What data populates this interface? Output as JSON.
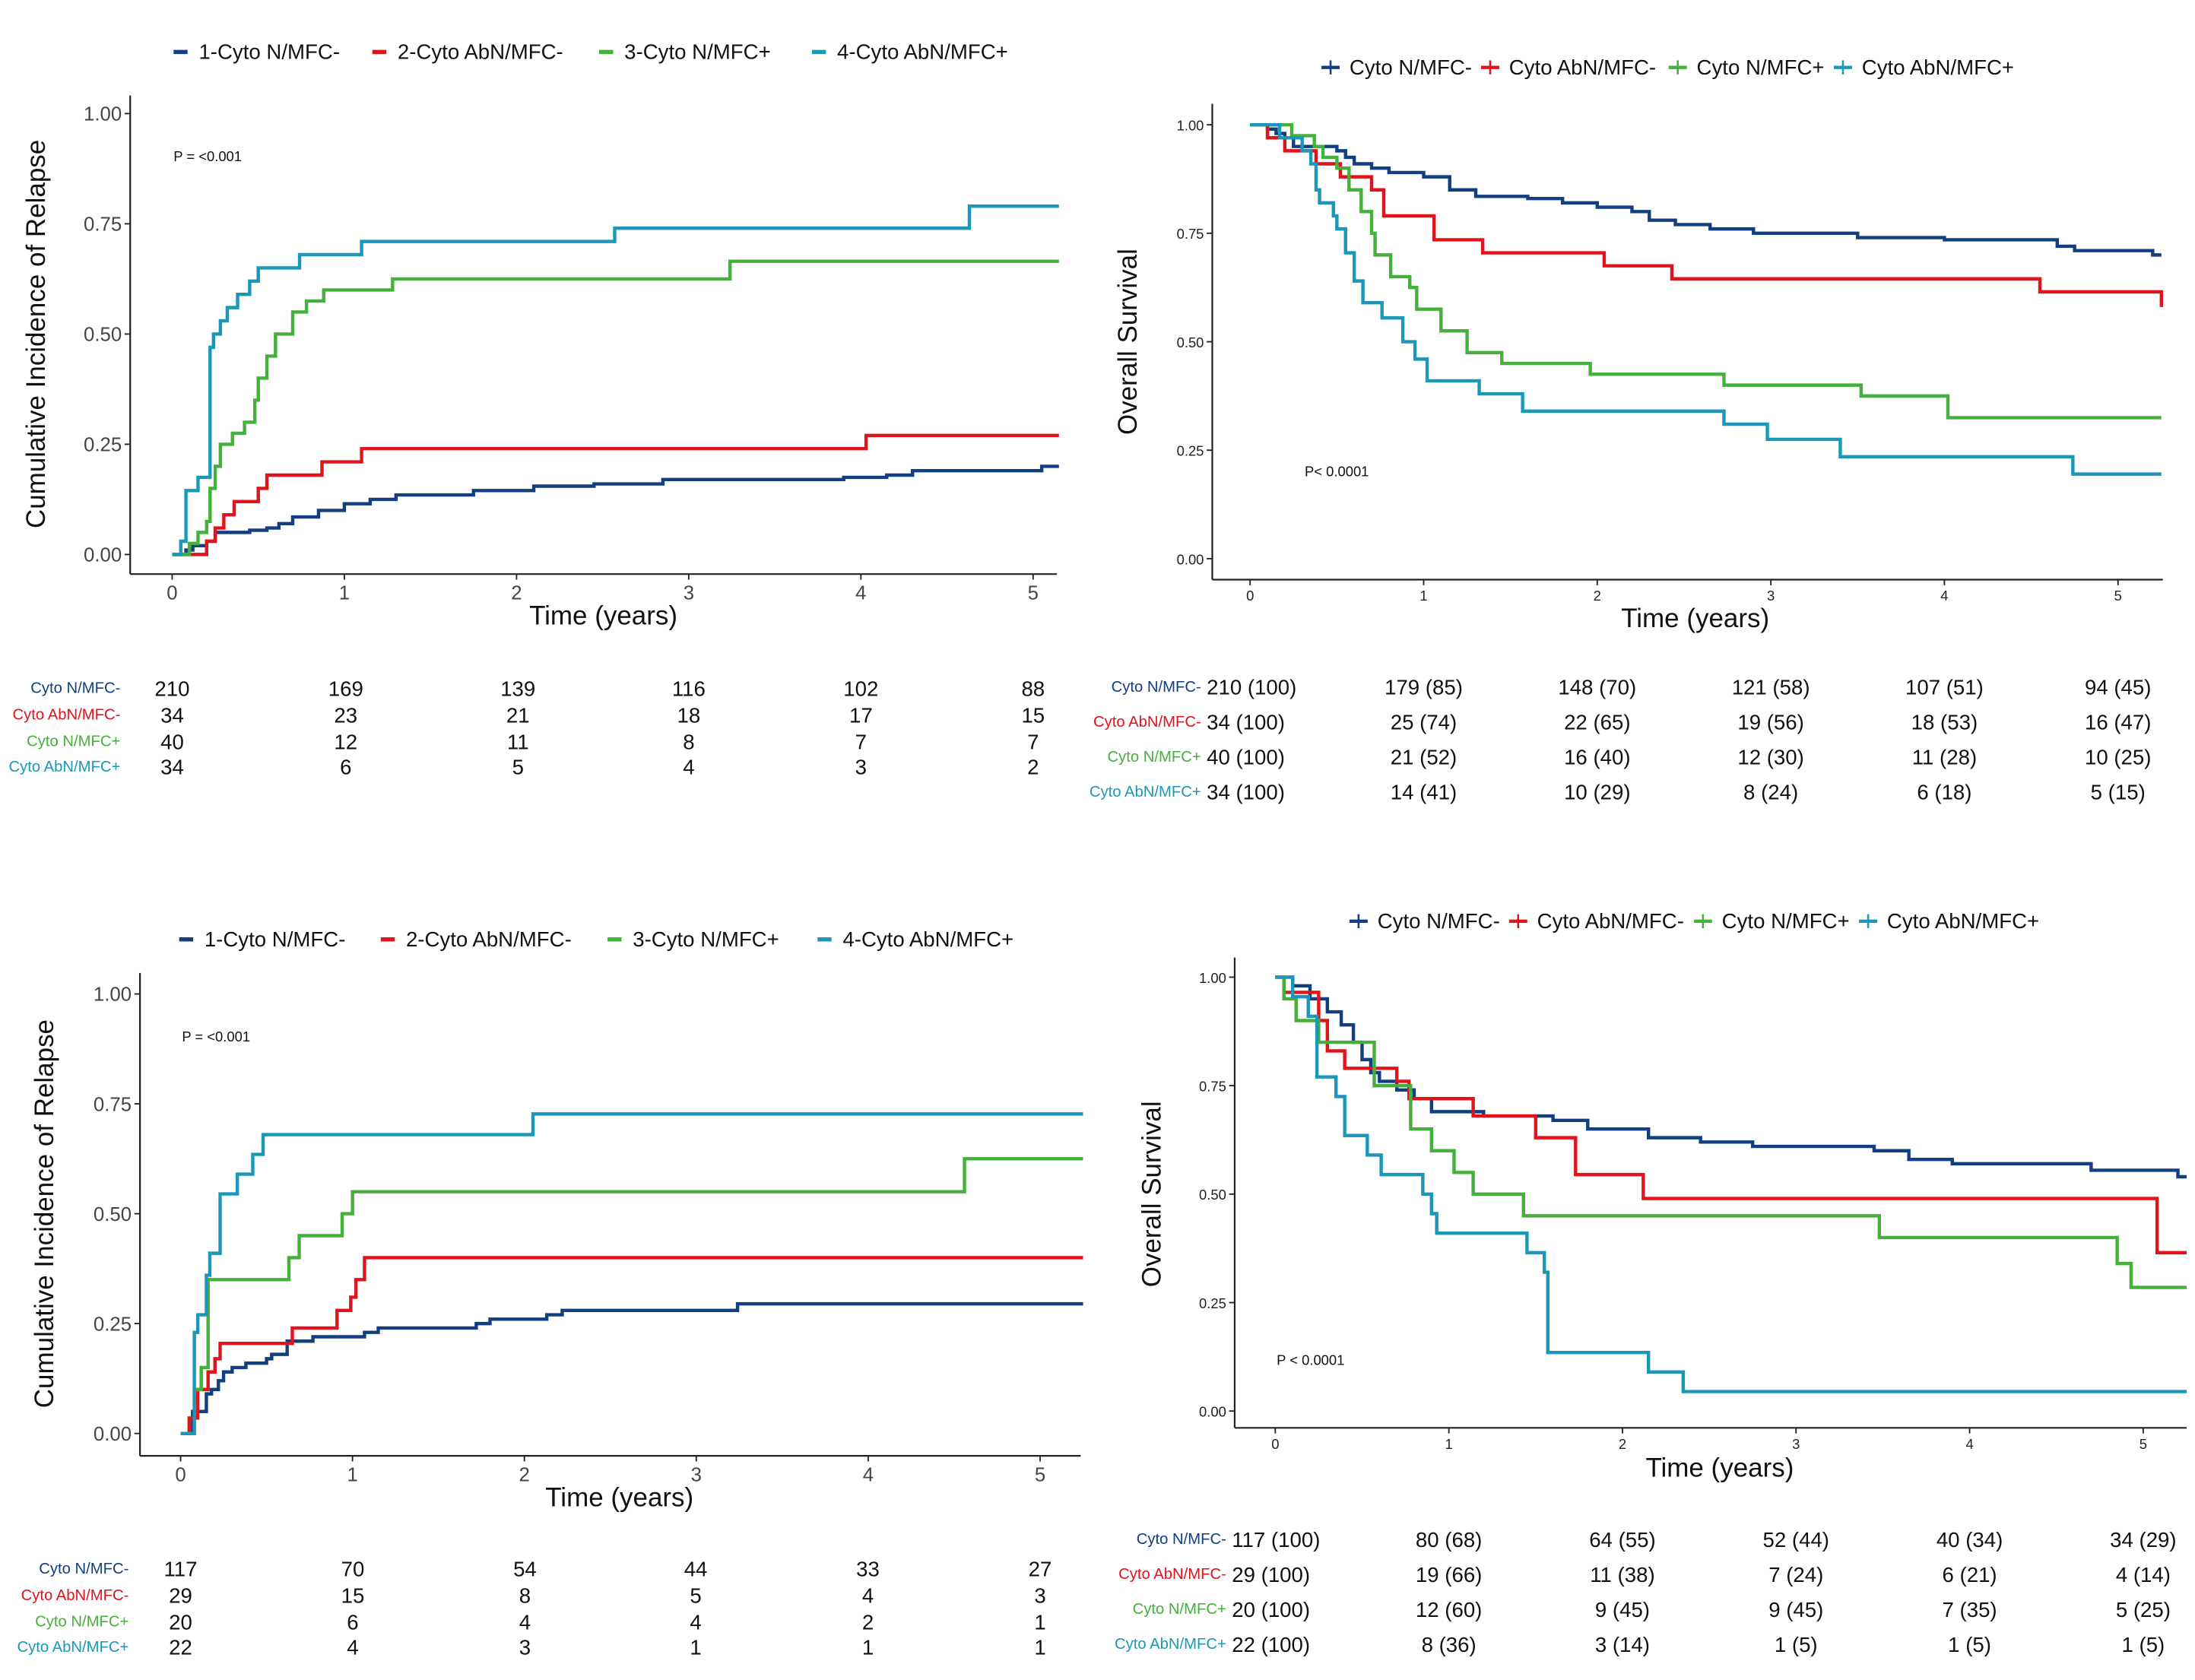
{
  "colors": {
    "g1": "#123f80",
    "g2": "#e0141c",
    "g3": "#46b03c",
    "g4": "#1b98b8"
  },
  "chart_data": [
    {
      "id": "top-left",
      "type": "line",
      "step": true,
      "title": "",
      "xlabel": "Time (years)",
      "ylabel": "Cumulative Incidence of Relapse",
      "xlim": [
        0,
        5.25
      ],
      "ylim": [
        0,
        1
      ],
      "xticks": [
        "0",
        "1",
        "2",
        "3",
        "4",
        "5"
      ],
      "yticks": [
        "0.00",
        "0.25",
        "0.50",
        "0.75",
        "1.00"
      ],
      "grid": false,
      "legend_position": "top",
      "annotation": "P = <0.001",
      "series": [
        {
          "name": "1-Cyto N/MFC-",
          "color_key": "g1",
          "x": [
            0,
            0.08,
            0.12,
            0.2,
            0.25,
            0.45,
            0.55,
            0.62,
            0.7,
            0.85,
            1.0,
            1.15,
            1.3,
            1.75,
            2.1,
            2.45,
            2.85,
            3.9,
            4.15,
            4.3,
            5.05,
            5.15
          ],
          "y": [
            0,
            0.01,
            0.02,
            0.03,
            0.05,
            0.055,
            0.06,
            0.07,
            0.085,
            0.1,
            0.115,
            0.125,
            0.135,
            0.145,
            0.155,
            0.16,
            0.17,
            0.175,
            0.18,
            0.19,
            0.2,
            0.2
          ]
        },
        {
          "name": "2-Cyto AbN/MFC-",
          "color_key": "g2",
          "x": [
            0,
            0.2,
            0.25,
            0.3,
            0.36,
            0.5,
            0.55,
            0.87,
            1.1,
            4.03,
            5.15
          ],
          "y": [
            0,
            0.03,
            0.06,
            0.09,
            0.12,
            0.15,
            0.18,
            0.21,
            0.24,
            0.27,
            0.27
          ]
        },
        {
          "name": "3-Cyto N/MFC+",
          "color_key": "g3",
          "x": [
            0,
            0.1,
            0.15,
            0.2,
            0.22,
            0.25,
            0.28,
            0.35,
            0.42,
            0.48,
            0.5,
            0.55,
            0.6,
            0.7,
            0.78,
            0.88,
            1.28,
            3.24,
            5.15
          ],
          "y": [
            0,
            0.025,
            0.05,
            0.075,
            0.15,
            0.2,
            0.25,
            0.275,
            0.3,
            0.35,
            0.4,
            0.45,
            0.5,
            0.55,
            0.575,
            0.6,
            0.625,
            0.665,
            0.665
          ]
        },
        {
          "name": "4-Cyto AbN/MFC+",
          "color_key": "g4",
          "x": [
            0,
            0.05,
            0.08,
            0.15,
            0.22,
            0.24,
            0.28,
            0.32,
            0.38,
            0.45,
            0.5,
            0.74,
            1.1,
            2.57,
            4.63,
            5.15
          ],
          "y": [
            0,
            0.03,
            0.145,
            0.175,
            0.47,
            0.5,
            0.53,
            0.56,
            0.59,
            0.62,
            0.65,
            0.68,
            0.71,
            0.74,
            0.79,
            0.79
          ]
        }
      ],
      "risk_table": {
        "time_points": [
          0,
          1,
          2,
          3,
          4,
          5
        ],
        "rows": [
          {
            "label": "Cyto N/MFC-",
            "color_key": "g1",
            "values": [
              "210",
              "169",
              "139",
              "116",
              "102",
              "88"
            ]
          },
          {
            "label": "Cyto AbN/MFC-",
            "color_key": "g2",
            "values": [
              "34",
              "23",
              "21",
              "18",
              "17",
              "15"
            ]
          },
          {
            "label": "Cyto N/MFC+",
            "color_key": "g3",
            "values": [
              "40",
              "12",
              "11",
              "8",
              "7",
              "7"
            ]
          },
          {
            "label": "Cyto AbN/MFC+",
            "color_key": "g4",
            "values": [
              "34",
              "6",
              "5",
              "4",
              "3",
              "2"
            ]
          }
        ]
      }
    },
    {
      "id": "top-right",
      "type": "line",
      "step": true,
      "title": "",
      "xlabel": "Time (years)",
      "ylabel": "Overall Survival",
      "xlim": [
        0,
        5.25
      ],
      "ylim": [
        0,
        1
      ],
      "xticks": [
        "0",
        "1",
        "2",
        "3",
        "4",
        "5"
      ],
      "yticks": [
        "0.00",
        "0.25",
        "0.50",
        "0.75",
        "1.00"
      ],
      "grid": false,
      "legend_position": "top",
      "annotation": "P< 0.0001",
      "series": [
        {
          "name": "Cyto N/MFC-",
          "color_key": "g1",
          "x": [
            0,
            0.1,
            0.15,
            0.2,
            0.25,
            0.5,
            0.55,
            0.6,
            0.7,
            0.8,
            1.0,
            1.15,
            1.3,
            1.6,
            1.8,
            2.0,
            2.2,
            2.3,
            2.45,
            2.65,
            2.9,
            3.5,
            3.9,
            4.0,
            4.65,
            4.75,
            5.2,
            5.25
          ],
          "y": [
            1,
            0.99,
            0.98,
            0.97,
            0.95,
            0.94,
            0.925,
            0.91,
            0.9,
            0.89,
            0.88,
            0.85,
            0.835,
            0.83,
            0.82,
            0.81,
            0.8,
            0.78,
            0.77,
            0.76,
            0.75,
            0.74,
            0.74,
            0.735,
            0.72,
            0.71,
            0.7,
            0.7
          ]
        },
        {
          "name": "Cyto AbN/MFC-",
          "color_key": "g2",
          "x": [
            0,
            0.1,
            0.2,
            0.38,
            0.52,
            0.7,
            0.77,
            1.06,
            1.34,
            2.04,
            2.43,
            4.55,
            5.25
          ],
          "y": [
            1,
            0.97,
            0.94,
            0.91,
            0.88,
            0.85,
            0.79,
            0.735,
            0.705,
            0.675,
            0.645,
            0.615,
            0.58
          ]
        },
        {
          "name": "Cyto N/MFC+",
          "color_key": "g3",
          "x": [
            0,
            0.24,
            0.37,
            0.42,
            0.5,
            0.57,
            0.64,
            0.7,
            0.72,
            0.81,
            0.92,
            0.96,
            1.1,
            1.25,
            1.45,
            1.96,
            2.73,
            3.52,
            4.02,
            5.25
          ],
          "y": [
            1,
            0.975,
            0.95,
            0.925,
            0.9,
            0.85,
            0.8,
            0.75,
            0.7,
            0.65,
            0.625,
            0.575,
            0.525,
            0.475,
            0.45,
            0.425,
            0.4,
            0.375,
            0.325,
            0.325
          ]
        },
        {
          "name": "Cyto AbN/MFC+",
          "color_key": "g4",
          "x": [
            0,
            0.17,
            0.3,
            0.35,
            0.38,
            0.4,
            0.48,
            0.5,
            0.55,
            0.6,
            0.65,
            0.76,
            0.88,
            0.95,
            1.02,
            1.32,
            1.57,
            2.73,
            2.98,
            3.4,
            4.74,
            5.25
          ],
          "y": [
            1,
            0.97,
            0.94,
            0.91,
            0.85,
            0.82,
            0.79,
            0.76,
            0.705,
            0.64,
            0.59,
            0.555,
            0.5,
            0.46,
            0.41,
            0.38,
            0.34,
            0.31,
            0.275,
            0.235,
            0.195,
            0.195
          ]
        }
      ],
      "risk_table": {
        "time_points": [
          0,
          1,
          2,
          3,
          4,
          5
        ],
        "rows": [
          {
            "label": "Cyto N/MFC-",
            "color_key": "g1",
            "values": [
              "210 (100)",
              "179 (85)",
              "148 (70)",
              "121 (58)",
              "107 (51)",
              "94 (45)"
            ]
          },
          {
            "label": "Cyto AbN/MFC-",
            "color_key": "g2",
            "values": [
              "34 (100)",
              "25 (74)",
              "22 (65)",
              "19 (56)",
              "18 (53)",
              "16 (47)"
            ]
          },
          {
            "label": "Cyto N/MFC+",
            "color_key": "g3",
            "values": [
              "40 (100)",
              "21 (52)",
              "16 (40)",
              "12 (30)",
              "11 (28)",
              "10 (25)"
            ]
          },
          {
            "label": "Cyto AbN/MFC+",
            "color_key": "g4",
            "values": [
              "34 (100)",
              "14 (41)",
              "10 (29)",
              "8 (24)",
              "6 (18)",
              "5 (15)"
            ]
          }
        ]
      }
    },
    {
      "id": "bottom-left",
      "type": "line",
      "step": true,
      "title": "",
      "xlabel": "Time (years)",
      "ylabel": "Cumulative Incidence of Relapse",
      "xlim": [
        0,
        5.25
      ],
      "ylim": [
        0,
        1
      ],
      "xticks": [
        "0",
        "1",
        "2",
        "3",
        "4",
        "5"
      ],
      "yticks": [
        "0.00",
        "0.25",
        "0.50",
        "0.75",
        "1.00"
      ],
      "grid": false,
      "legend_position": "top",
      "annotation": "P = <0.001",
      "series": [
        {
          "name": "1-Cyto N/MFC-",
          "color_key": "g1",
          "x": [
            0,
            0.07,
            0.15,
            0.18,
            0.22,
            0.25,
            0.3,
            0.38,
            0.5,
            0.53,
            0.62,
            0.77,
            1.07,
            1.15,
            1.72,
            1.8,
            2.13,
            2.22,
            3.24,
            5.25
          ],
          "y": [
            0,
            0.05,
            0.09,
            0.1,
            0.12,
            0.14,
            0.15,
            0.16,
            0.17,
            0.18,
            0.21,
            0.22,
            0.23,
            0.24,
            0.25,
            0.26,
            0.27,
            0.28,
            0.295,
            0.295
          ]
        },
        {
          "name": "2-Cyto AbN/MFC-",
          "color_key": "g2",
          "x": [
            0,
            0.05,
            0.1,
            0.16,
            0.2,
            0.23,
            0.65,
            0.91,
            0.99,
            1.02,
            1.07,
            5.25
          ],
          "y": [
            0,
            0.035,
            0.1,
            0.14,
            0.17,
            0.205,
            0.24,
            0.28,
            0.31,
            0.35,
            0.4,
            0.4
          ]
        },
        {
          "name": "3-Cyto N/MFC+",
          "color_key": "g3",
          "x": [
            0,
            0.08,
            0.12,
            0.16,
            0.63,
            0.69,
            0.94,
            1.0,
            4.56,
            5.25
          ],
          "y": [
            0,
            0.1,
            0.15,
            0.35,
            0.4,
            0.45,
            0.5,
            0.55,
            0.625,
            0.625
          ]
        },
        {
          "name": "4-Cyto AbN/MFC+",
          "color_key": "g4",
          "x": [
            0,
            0.08,
            0.1,
            0.15,
            0.17,
            0.23,
            0.33,
            0.42,
            0.48,
            2.05,
            5.25
          ],
          "y": [
            0,
            0.23,
            0.27,
            0.36,
            0.41,
            0.545,
            0.59,
            0.635,
            0.68,
            0.727,
            0.727
          ]
        }
      ],
      "risk_table": {
        "time_points": [
          0,
          1,
          2,
          3,
          4,
          5
        ],
        "rows": [
          {
            "label": "Cyto N/MFC-",
            "color_key": "g1",
            "values": [
              "117",
              "70",
              "54",
              "44",
              "33",
              "27"
            ]
          },
          {
            "label": "Cyto AbN/MFC-",
            "color_key": "g2",
            "values": [
              "29",
              "15",
              "8",
              "5",
              "4",
              "3"
            ]
          },
          {
            "label": "Cyto N/MFC+",
            "color_key": "g3",
            "values": [
              "20",
              "6",
              "4",
              "4",
              "2",
              "1"
            ]
          },
          {
            "label": "Cyto AbN/MFC+",
            "color_key": "g4",
            "values": [
              "22",
              "4",
              "3",
              "1",
              "1",
              "1"
            ]
          }
        ]
      }
    },
    {
      "id": "bottom-right",
      "type": "line",
      "step": true,
      "title": "",
      "xlabel": "Time (years)",
      "ylabel": "Overall Survival",
      "xlim": [
        0,
        5.25
      ],
      "ylim": [
        0,
        1
      ],
      "xticks": [
        "0",
        "1",
        "2",
        "3",
        "4",
        "5"
      ],
      "yticks": [
        "0.00",
        "0.25",
        "0.50",
        "0.75",
        "1.00"
      ],
      "grid": false,
      "legend_position": "top",
      "annotation": "P < 0.0001",
      "series": [
        {
          "name": "Cyto N/MFC-",
          "color_key": "g1",
          "x": [
            0,
            0.1,
            0.2,
            0.3,
            0.38,
            0.45,
            0.5,
            0.55,
            0.6,
            0.7,
            0.8,
            0.9,
            1.2,
            1.6,
            1.8,
            2.15,
            2.45,
            2.75,
            3.45,
            3.65,
            3.9,
            4.7,
            5.2,
            5.25
          ],
          "y": [
            1,
            0.98,
            0.95,
            0.92,
            0.89,
            0.85,
            0.81,
            0.78,
            0.76,
            0.74,
            0.72,
            0.69,
            0.68,
            0.67,
            0.65,
            0.63,
            0.62,
            0.61,
            0.6,
            0.58,
            0.57,
            0.555,
            0.54,
            0.54
          ]
        },
        {
          "name": "Cyto AbN/MFC-",
          "color_key": "g2",
          "x": [
            0,
            0.05,
            0.25,
            0.3,
            0.4,
            0.7,
            0.77,
            1.14,
            1.5,
            1.73,
            2.12,
            5.08,
            5.25
          ],
          "y": [
            1,
            0.965,
            0.9,
            0.83,
            0.79,
            0.76,
            0.72,
            0.68,
            0.63,
            0.545,
            0.49,
            0.365,
            0.365
          ]
        },
        {
          "name": "Cyto N/MFC+",
          "color_key": "g3",
          "x": [
            0,
            0.05,
            0.12,
            0.25,
            0.57,
            0.78,
            0.9,
            1.03,
            1.14,
            1.43,
            3.48,
            4.85,
            4.93,
            5.25
          ],
          "y": [
            1,
            0.95,
            0.9,
            0.85,
            0.75,
            0.65,
            0.6,
            0.55,
            0.5,
            0.45,
            0.4,
            0.34,
            0.285,
            0.285
          ]
        },
        {
          "name": "Cyto AbN/MFC+",
          "color_key": "g4",
          "x": [
            0,
            0.1,
            0.19,
            0.24,
            0.35,
            0.4,
            0.53,
            0.61,
            0.85,
            0.9,
            0.93,
            1.45,
            1.55,
            1.57,
            2.15,
            2.35,
            5.25
          ],
          "y": [
            1,
            0.955,
            0.91,
            0.77,
            0.725,
            0.635,
            0.59,
            0.545,
            0.5,
            0.455,
            0.41,
            0.365,
            0.32,
            0.135,
            0.09,
            0.045,
            0.045
          ]
        }
      ],
      "risk_table": {
        "time_points": [
          0,
          1,
          2,
          3,
          4,
          5
        ],
        "rows": [
          {
            "label": "Cyto N/MFC-",
            "color_key": "g1",
            "values": [
              "117 (100)",
              "80 (68)",
              "64 (55)",
              "52 (44)",
              "40 (34)",
              "34 (29)"
            ]
          },
          {
            "label": "Cyto AbN/MFC-",
            "color_key": "g2",
            "values": [
              "29 (100)",
              "19 (66)",
              "11 (38)",
              "7 (24)",
              "6 (21)",
              "4 (14)"
            ]
          },
          {
            "label": "Cyto N/MFC+",
            "color_key": "g3",
            "values": [
              "20 (100)",
              "12 (60)",
              "9 (45)",
              "9 (45)",
              "7 (35)",
              "5 (25)"
            ]
          },
          {
            "label": "Cyto AbN/MFC+",
            "color_key": "g4",
            "values": [
              "22 (100)",
              "8 (36)",
              "3 (14)",
              "1 (5)",
              "1 (5)",
              "1 (5)"
            ]
          }
        ]
      }
    }
  ]
}
